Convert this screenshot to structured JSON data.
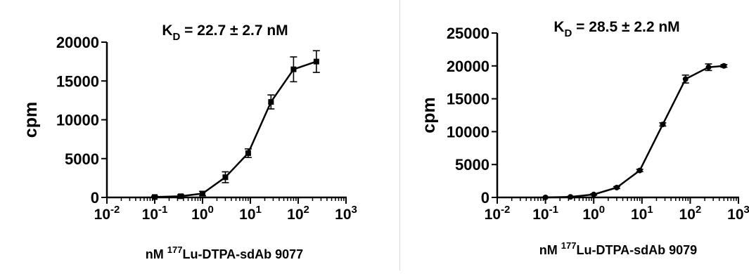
{
  "chart_data": [
    {
      "type": "line",
      "title": "K",
      "title_subscript": "D",
      "title_rest": " = 22.7 ± 2.7 nM",
      "ylabel": "cpm",
      "xlabel_prefix": "nM ",
      "xlabel_superscript": "177",
      "xlabel_rest": "Lu-DTPA-sdAb 9077",
      "x_scale": "log",
      "xlim": [
        0.01,
        1000
      ],
      "ylim": [
        0,
        20000
      ],
      "xticks": [
        0.01,
        0.1,
        1,
        10,
        100,
        1000
      ],
      "xtick_base": "10",
      "xtick_exponents": [
        "-2",
        "-1",
        "0",
        "1",
        "2",
        "3"
      ],
      "yticks": [
        0,
        5000,
        10000,
        15000,
        20000
      ],
      "ytick_labels": [
        "0",
        "5000",
        "10000",
        "15000",
        "20000"
      ],
      "marker": "square",
      "grid": false,
      "series": [
        {
          "x": [
            0.1,
            0.35,
            1,
            3,
            9,
            27,
            80,
            240
          ],
          "y": [
            50,
            150,
            500,
            2600,
            5700,
            12300,
            16500,
            17500
          ],
          "err": [
            120,
            200,
            280,
            700,
            550,
            900,
            1600,
            1400
          ]
        }
      ]
    },
    {
      "type": "line",
      "title": "K",
      "title_subscript": "D",
      "title_rest": " = 28.5 ± 2.2 nM",
      "ylabel": "cpm",
      "xlabel_prefix": "nM ",
      "xlabel_superscript": "177",
      "xlabel_rest": "Lu-DTPA-sdAb 9079",
      "x_scale": "log",
      "xlim": [
        0.01,
        1000
      ],
      "ylim": [
        0,
        25000
      ],
      "xticks": [
        0.01,
        0.1,
        1,
        10,
        100,
        1000
      ],
      "xtick_base": "10",
      "xtick_exponents": [
        "-2",
        "-1",
        "0",
        "1",
        "2",
        "3"
      ],
      "yticks": [
        0,
        5000,
        10000,
        15000,
        20000,
        25000
      ],
      "ytick_labels": [
        "0",
        "5000",
        "10000",
        "15000",
        "20000",
        "25000"
      ],
      "marker": "circle",
      "grid": false,
      "series": [
        {
          "x": [
            0.1,
            0.33,
            1,
            3,
            9,
            27,
            80,
            240,
            500
          ],
          "y": [
            0,
            80,
            450,
            1500,
            4100,
            11100,
            18000,
            19800,
            20000
          ],
          "err": [
            60,
            80,
            100,
            150,
            180,
            250,
            600,
            500,
            200
          ]
        }
      ]
    }
  ]
}
